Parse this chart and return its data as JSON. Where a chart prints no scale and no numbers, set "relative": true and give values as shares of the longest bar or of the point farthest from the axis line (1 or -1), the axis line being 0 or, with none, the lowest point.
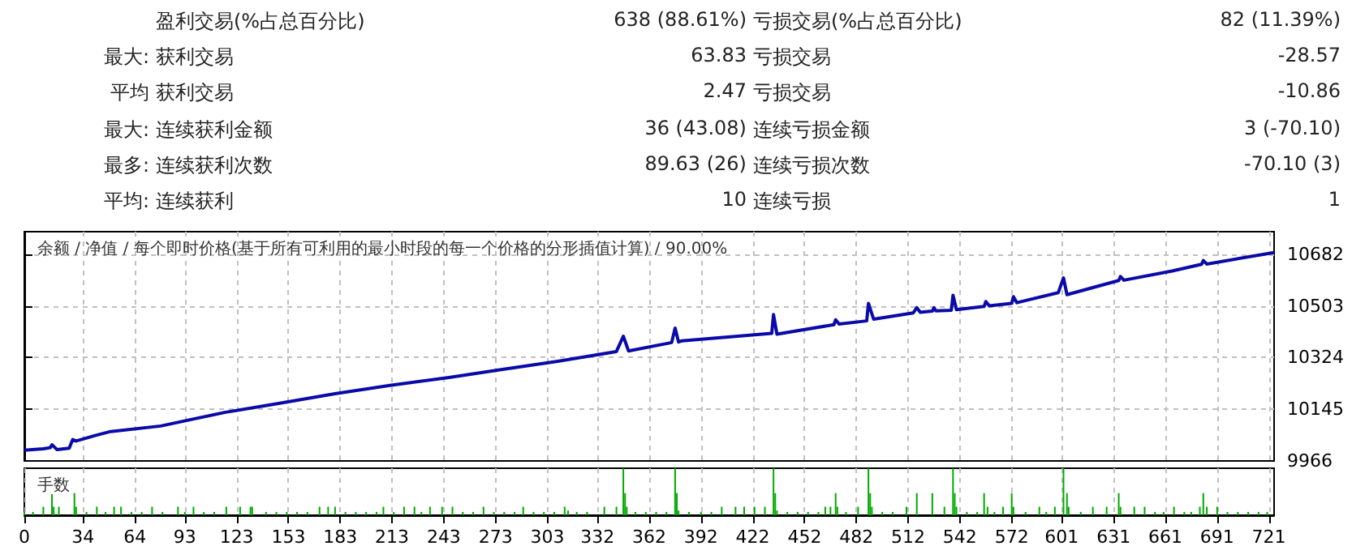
{
  "chart_data": [
    {
      "type": "other",
      "annotations": [
        "盈利交易(%占总百分比)",
        "638 (88.61%)",
        "亏损交易(%占总百分比)",
        "82 (11.39%)",
        "最大:",
        "获利交易",
        "63.83",
        "亏损交易",
        "-28.57",
        "平均",
        "获利交易",
        "2.47",
        "亏损交易",
        "-10.86",
        "最大:",
        "连续获利金额",
        "36 (43.08)",
        "连续亏损金额",
        "3 (-70.10)",
        "最多:",
        "连续获利次数",
        "89.63 (26)",
        "连续亏损次数",
        "-70.10 (3)",
        "平均:",
        "连续获利",
        "10",
        "连续亏损",
        "1"
      ]
    },
    {
      "type": "line",
      "title": "余额 / 净值 / 每个即时价格(基于所有可利用的最小时段的每一个价格的分形插值计算) / 90.00%",
      "x": [
        0,
        11,
        15,
        16,
        19,
        26,
        28,
        30,
        41,
        50,
        79,
        116,
        148,
        180,
        211,
        246,
        277,
        309,
        343,
        347,
        350,
        375,
        377,
        379,
        381,
        433,
        434,
        436,
        469,
        470,
        472,
        488,
        489,
        492,
        515,
        517,
        519,
        526,
        527,
        528,
        537,
        538,
        540,
        556,
        557,
        559,
        572,
        573,
        575,
        599,
        602,
        604,
        634,
        635,
        637,
        665,
        682,
        683,
        685,
        724
      ],
      "series": [
        {
          "color": "#0a0aa8",
          "values": [
            10003,
            10008,
            10012,
            10022,
            10005,
            10010,
            10040,
            10035,
            10054,
            10068,
            10087,
            10134,
            10166,
            10199,
            10227,
            10255,
            10283,
            10311,
            10345,
            10398,
            10347,
            10376,
            10426,
            10378,
            10382,
            10408,
            10473,
            10405,
            10438,
            10455,
            10440,
            10451,
            10512,
            10457,
            10479,
            10497,
            10481,
            10485,
            10497,
            10486,
            10488,
            10540,
            10490,
            10501,
            10518,
            10503,
            10512,
            10535,
            10514,
            10549,
            10600,
            10542,
            10591,
            10605,
            10592,
            10624,
            10647,
            10660,
            10648,
            10688
          ]
        }
      ],
      "xlim": [
        0,
        724
      ],
      "xticks": [
        0,
        34,
        64,
        93,
        123,
        153,
        183,
        213,
        243,
        273,
        303,
        332,
        362,
        392,
        422,
        452,
        482,
        512,
        542,
        572,
        601,
        631,
        661,
        691,
        721
      ],
      "ylim": [
        9966,
        10760
      ],
      "yticks": [
        9966,
        10145,
        10324,
        10503,
        10682
      ],
      "grid": true,
      "tick_labels": "y"
    },
    {
      "type": "bar",
      "title": "手数",
      "relative": true,
      "tick_labels": "x",
      "grid": "x",
      "xlim": [
        0,
        724
      ],
      "xticks": [
        0,
        34,
        64,
        93,
        123,
        153,
        183,
        213,
        243,
        273,
        303,
        332,
        362,
        392,
        422,
        452,
        482,
        512,
        542,
        572,
        601,
        631,
        661,
        691,
        721
      ],
      "x": [
        0,
        5,
        11,
        16,
        17,
        20,
        29,
        30,
        36,
        42,
        47,
        52,
        56,
        62,
        68,
        74,
        80,
        89,
        93,
        98,
        104,
        110,
        117,
        125,
        131,
        132,
        140,
        146,
        152,
        158,
        164,
        171,
        176,
        180,
        186,
        192,
        198,
        204,
        208,
        214,
        220,
        226,
        230,
        235,
        242,
        248,
        254,
        260,
        266,
        272,
        278,
        284,
        289,
        295,
        301,
        307,
        313,
        315,
        320,
        326,
        336,
        343,
        347,
        348,
        349,
        354,
        360,
        366,
        372,
        377,
        378,
        379,
        385,
        392,
        398,
        404,
        412,
        417,
        423,
        429,
        434,
        435,
        436,
        442,
        448,
        454,
        460,
        464,
        467,
        470,
        471,
        476,
        483,
        489,
        490,
        491,
        497,
        503,
        511,
        517,
        526,
        533,
        538,
        539,
        540,
        546,
        552,
        556,
        558,
        562,
        567,
        572,
        573,
        580,
        588,
        592,
        597,
        602,
        604,
        605,
        612,
        619,
        627,
        634,
        635,
        643,
        649,
        655,
        660,
        666,
        672,
        676,
        681,
        683,
        685,
        691,
        697,
        703,
        709,
        715,
        720
      ],
      "series": [
        {
          "color": "#00aa00",
          "values": [
            0.07,
            0.07,
            0.18,
            0.45,
            0.18,
            0.18,
            0.47,
            0.18,
            0.07,
            0.18,
            0.07,
            0.18,
            0.18,
            0.07,
            0.07,
            0.18,
            0.07,
            0.18,
            0.07,
            0.18,
            0.07,
            0.07,
            0.18,
            0.18,
            0.18,
            0.18,
            0.07,
            0.07,
            0.07,
            0.07,
            0.07,
            0.18,
            0.18,
            0.18,
            0.07,
            0.07,
            0.07,
            0.07,
            0.18,
            0.07,
            0.18,
            0.18,
            0.07,
            0.18,
            0.18,
            0.18,
            0.07,
            0.07,
            0.18,
            0.07,
            0.07,
            0.07,
            0.18,
            0.07,
            0.07,
            0.07,
            0.18,
            0.1,
            0.07,
            0.07,
            0.18,
            0.18,
            1,
            0.47,
            0.18,
            0.07,
            0.07,
            0.07,
            0.07,
            1,
            0.47,
            0.1,
            0.07,
            0.07,
            0.07,
            0.18,
            0.18,
            0.18,
            0.18,
            0.18,
            1,
            0.47,
            0.1,
            0.07,
            0.07,
            0.07,
            0.07,
            0.18,
            0.18,
            0.47,
            0.18,
            0.07,
            0.18,
            1,
            0.47,
            0.18,
            0.07,
            0.07,
            0.18,
            0.47,
            0.47,
            0.18,
            1,
            0.47,
            0.18,
            0.07,
            0.07,
            0.47,
            0.18,
            0.07,
            0.18,
            0.47,
            0.18,
            0.07,
            0.18,
            0.07,
            0.18,
            1,
            0.47,
            0.18,
            0.07,
            0.18,
            0.18,
            0.47,
            0.18,
            0.18,
            0.18,
            0.07,
            0.07,
            0.18,
            0.07,
            0.07,
            0.18,
            0.47,
            0.18,
            0.18,
            0.07,
            0.07,
            0.07,
            0.07,
            0.07
          ]
        }
      ]
    }
  ]
}
